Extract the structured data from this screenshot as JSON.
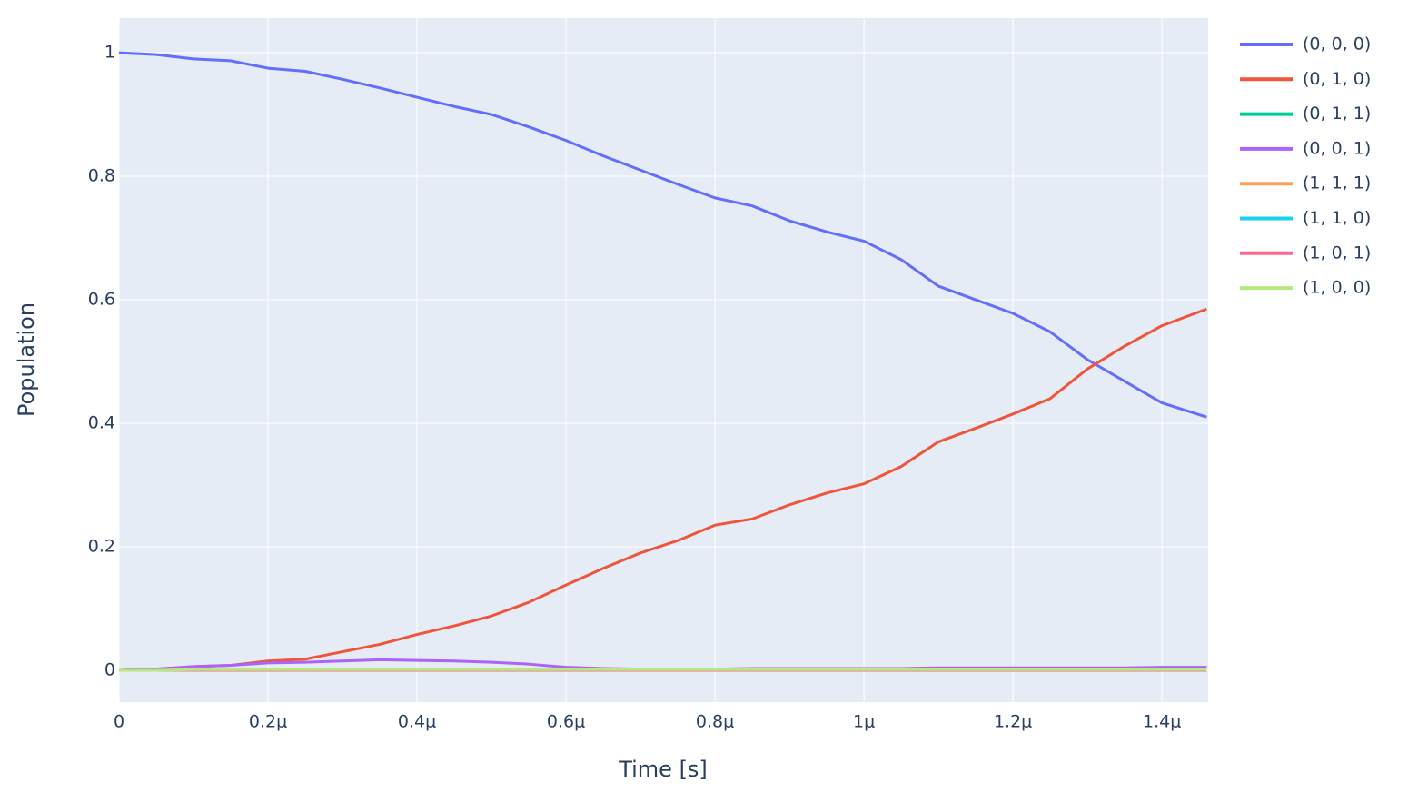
{
  "chart_data": {
    "type": "line",
    "x_label": "Time [s]",
    "y_label": "Population",
    "x": [
      0,
      5e-08,
      1e-07,
      1.5e-07,
      2e-07,
      2.5e-07,
      3e-07,
      3.5e-07,
      4e-07,
      4.5e-07,
      5e-07,
      5.5e-07,
      6e-07,
      6.5e-07,
      7e-07,
      7.5e-07,
      8e-07,
      8.5e-07,
      9e-07,
      9.5e-07,
      1e-06,
      1.05e-06,
      1.1e-06,
      1.15e-06,
      1.2e-06,
      1.25e-06,
      1.3e-06,
      1.35e-06,
      1.4e-06,
      1.46e-06
    ],
    "series": [
      {
        "name": "(0, 0, 0)",
        "color": "#636efa",
        "values": [
          1.0,
          0.997,
          0.99,
          0.987,
          0.975,
          0.97,
          0.957,
          0.943,
          0.928,
          0.913,
          0.9,
          0.88,
          0.858,
          0.833,
          0.81,
          0.787,
          0.765,
          0.752,
          0.728,
          0.71,
          0.695,
          0.665,
          0.622,
          0.6,
          0.578,
          0.548,
          0.503,
          0.468,
          0.433,
          0.41
        ]
      },
      {
        "name": "(0, 1, 0)",
        "color": "#ef553b",
        "values": [
          0,
          0.002,
          0.006,
          0.008,
          0.015,
          0.018,
          0.03,
          0.042,
          0.058,
          0.072,
          0.088,
          0.11,
          0.138,
          0.165,
          0.19,
          0.21,
          0.235,
          0.245,
          0.268,
          0.287,
          0.302,
          0.33,
          0.37,
          0.392,
          0.415,
          0.44,
          0.488,
          0.525,
          0.558,
          0.585
        ]
      },
      {
        "name": "(0, 1, 1)",
        "color": "#00cc96",
        "values": [
          0,
          0,
          0.001,
          0.001,
          0.001,
          0.001,
          0.001,
          0.001,
          0.001,
          0.001,
          0.001,
          0.001,
          0.001,
          0.001,
          0.001,
          0.001,
          0.001,
          0.001,
          0.001,
          0.001,
          0.001,
          0.001,
          0.001,
          0.001,
          0.001,
          0.001,
          0.001,
          0.001,
          0.001,
          0.001
        ]
      },
      {
        "name": "(0, 0, 1)",
        "color": "#ab63fa",
        "values": [
          0,
          0.002,
          0.006,
          0.008,
          0.012,
          0.013,
          0.015,
          0.017,
          0.016,
          0.015,
          0.013,
          0.01,
          0.005,
          0.003,
          0.002,
          0.002,
          0.002,
          0.003,
          0.003,
          0.003,
          0.003,
          0.003,
          0.004,
          0.004,
          0.004,
          0.004,
          0.004,
          0.004,
          0.005,
          0.005
        ]
      },
      {
        "name": "(1, 1, 1)",
        "color": "#ffa15a",
        "values": [
          0,
          0,
          0,
          0,
          0,
          0,
          0,
          0,
          0,
          0,
          0,
          0,
          0,
          0,
          0,
          0,
          0,
          0,
          0,
          0,
          0,
          0,
          0,
          0,
          0,
          0,
          0,
          0,
          0,
          0
        ]
      },
      {
        "name": "(1, 1, 0)",
        "color": "#19d3f3",
        "values": [
          0,
          0,
          0,
          0,
          0,
          0,
          0,
          0,
          0,
          0,
          0,
          0,
          0,
          0,
          0,
          0,
          0,
          0,
          0,
          0,
          0,
          0,
          0,
          0,
          0,
          0,
          0,
          0,
          0,
          0
        ]
      },
      {
        "name": "(1, 0, 1)",
        "color": "#ff6692",
        "values": [
          0,
          0,
          0,
          0,
          0,
          0,
          0,
          0,
          0,
          0,
          0,
          0,
          0,
          0,
          0,
          0,
          0,
          0,
          0,
          0,
          0,
          0,
          0,
          0,
          0,
          0,
          0,
          0,
          0,
          0
        ]
      },
      {
        "name": "(1, 0, 0)",
        "color": "#b6e880",
        "values": [
          0,
          0,
          0.001,
          0.001,
          0.001,
          0.001,
          0.001,
          0.001,
          0.001,
          0.001,
          0.001,
          0.001,
          0.001,
          0.001,
          0.001,
          0.001,
          0.001,
          0.001,
          0.001,
          0.001,
          0.001,
          0.001,
          0.001,
          0.001,
          0.001,
          0.001,
          0.001,
          0.001,
          0.001,
          0.001
        ]
      }
    ],
    "xlim": [
      0,
      1.462e-06
    ],
    "ylim": [
      -0.0515,
      1.056
    ],
    "xticks": [
      0,
      {
        "value": 2e-07,
        "label": "0.2μ"
      },
      {
        "value": 4e-07,
        "label": "0.4μ"
      },
      {
        "value": 6e-07,
        "label": "0.6μ"
      },
      {
        "value": 8e-07,
        "label": "0.8μ"
      },
      {
        "value": 1e-06,
        "label": "1μ"
      },
      {
        "value": 1.2e-06,
        "label": "1.2μ"
      },
      {
        "value": 1.4e-06,
        "label": "1.4μ"
      }
    ],
    "yticks": [
      0,
      0.2,
      0.4,
      0.6,
      0.8,
      1
    ],
    "grid": true,
    "legend": "right"
  }
}
